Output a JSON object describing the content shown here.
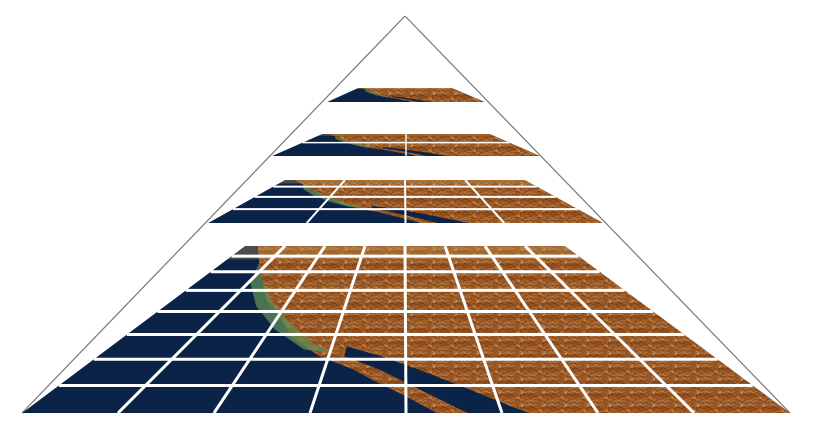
{
  "diagram": {
    "kind": "tile-pyramid",
    "levels": [
      {
        "level": 0,
        "grid": 1
      },
      {
        "level": 1,
        "grid": 2
      },
      {
        "level": 2,
        "grid": 4
      },
      {
        "level": 3,
        "grid": 8
      }
    ],
    "colors": {
      "ocean": "#0b2346",
      "land_dark": "#7a3e14",
      "land_mid": "#a35a22",
      "land_light": "#c8803e",
      "coast_green": "#5f8f55",
      "grid_lines": "#ffffff",
      "frustum_lines": "#777777"
    }
  }
}
